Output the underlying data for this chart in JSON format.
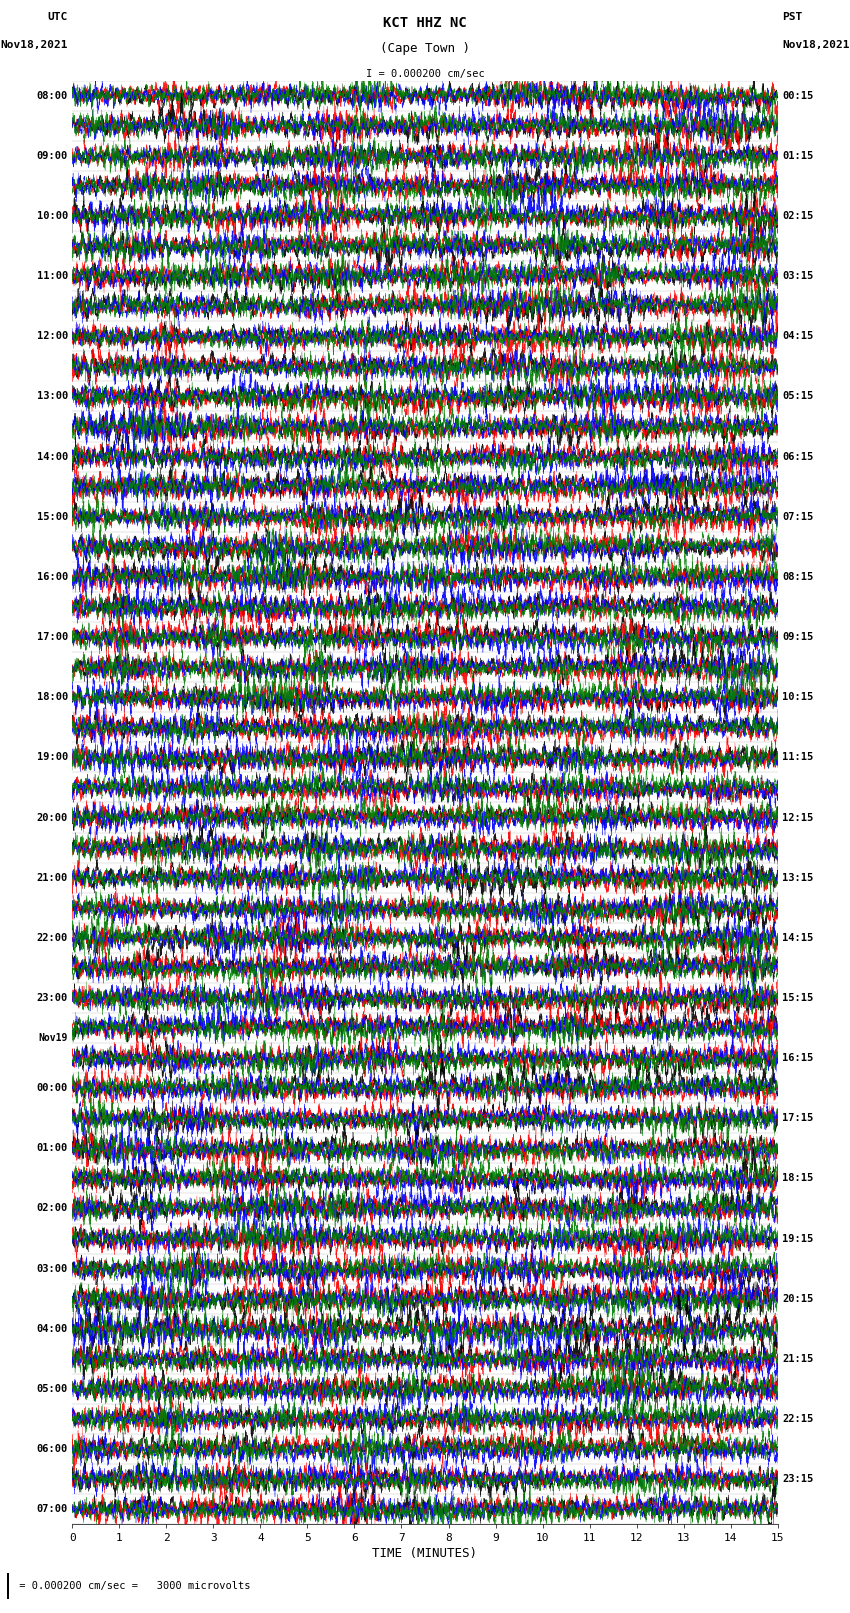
{
  "title_line1": "KCT HHZ NC",
  "title_line2": "(Cape Town )",
  "scale_label": "I = 0.000200 cm/sec",
  "left_label_top": "UTC",
  "left_label_date": "Nov18,2021",
  "right_label_top": "PST",
  "right_label_date": "Nov18,2021",
  "bottom_label": "TIME (MINUTES)",
  "bottom_note": " = 0.000200 cm/sec =   3000 microvolts",
  "xlabel_ticks": [
    0,
    1,
    2,
    3,
    4,
    5,
    6,
    7,
    8,
    9,
    10,
    11,
    12,
    13,
    14,
    15
  ],
  "left_times_utc": [
    "08:00",
    "",
    "09:00",
    "",
    "10:00",
    "",
    "11:00",
    "",
    "12:00",
    "",
    "13:00",
    "",
    "14:00",
    "",
    "15:00",
    "",
    "16:00",
    "",
    "17:00",
    "",
    "18:00",
    "",
    "19:00",
    "",
    "20:00",
    "",
    "21:00",
    "",
    "22:00",
    "",
    "23:00",
    "",
    "Nov19",
    "00:00",
    "",
    "01:00",
    "",
    "02:00",
    "",
    "03:00",
    "",
    "04:00",
    "",
    "05:00",
    "",
    "06:00",
    "",
    "07:00",
    ""
  ],
  "right_times_pst": [
    "00:15",
    "",
    "01:15",
    "",
    "02:15",
    "",
    "03:15",
    "",
    "04:15",
    "",
    "05:15",
    "",
    "06:15",
    "",
    "07:15",
    "",
    "08:15",
    "",
    "09:15",
    "",
    "10:15",
    "",
    "11:15",
    "",
    "12:15",
    "",
    "13:15",
    "",
    "14:15",
    "",
    "15:15",
    "",
    "16:15",
    "",
    "17:15",
    "",
    "18:15",
    "",
    "19:15",
    "",
    "20:15",
    "",
    "21:15",
    "",
    "22:15",
    "",
    "23:15",
    ""
  ],
  "num_rows": 48,
  "bg_color": "#ffffff",
  "colors": [
    "#000000",
    "#ff0000",
    "#0000ff",
    "#008000"
  ],
  "seed": 42
}
